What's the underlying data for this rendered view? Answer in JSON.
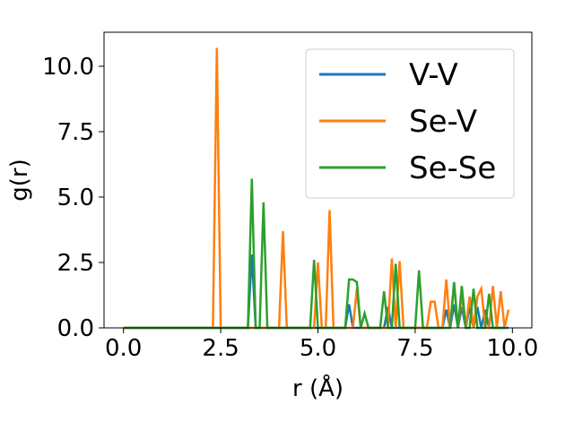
{
  "chart_data": {
    "type": "line",
    "xlabel": "r (Å)",
    "ylabel": "g(r)",
    "xlim": [
      -0.5,
      10.5
    ],
    "ylim": [
      0,
      11.3
    ],
    "xticks": [
      0.0,
      2.5,
      5.0,
      7.5,
      10.0
    ],
    "xtick_labels": [
      "0.0",
      "2.5",
      "5.0",
      "7.5",
      "10.0"
    ],
    "yticks": [
      0.0,
      2.5,
      5.0,
      7.5,
      10.0
    ],
    "ytick_labels": [
      "0.0",
      "2.5",
      "5.0",
      "7.5",
      "10.0"
    ],
    "grid": false,
    "legend_position": "top-right",
    "series": [
      {
        "name": "V-V",
        "color": "#1f77b4",
        "x": [
          0.0,
          3.2,
          3.3,
          3.4,
          5.7,
          5.8,
          5.9,
          6.7,
          6.8,
          6.9,
          8.2,
          8.3,
          8.4,
          8.5,
          8.6,
          8.7,
          8.8,
          8.9,
          9.0,
          9.1,
          9.2,
          9.3,
          9.4,
          9.9
        ],
        "y": [
          0.0,
          0.0,
          2.8,
          0.0,
          0.0,
          0.9,
          0.0,
          0.0,
          0.8,
          0.0,
          0.0,
          0.7,
          0.0,
          0.9,
          0.0,
          0.8,
          0.0,
          0.8,
          0.0,
          0.8,
          0.0,
          0.7,
          0.0,
          0.0
        ]
      },
      {
        "name": "Se-V",
        "color": "#ff7f0e",
        "x": [
          0.0,
          2.3,
          2.4,
          2.5,
          4.0,
          4.1,
          4.2,
          4.9,
          5.0,
          5.1,
          5.2,
          5.3,
          5.4,
          5.9,
          6.0,
          6.1,
          6.8,
          6.9,
          7.0,
          7.1,
          7.2,
          7.7,
          7.8,
          7.9,
          8.0,
          8.1,
          8.2,
          8.3,
          8.4,
          8.5,
          8.6,
          8.7,
          8.8,
          8.9,
          9.0,
          9.1,
          9.2,
          9.3,
          9.4,
          9.5,
          9.6,
          9.7,
          9.8,
          9.9
        ],
        "y": [
          0.0,
          0.0,
          10.7,
          0.0,
          0.0,
          3.7,
          0.0,
          0.0,
          2.5,
          0.0,
          0.0,
          4.5,
          0.0,
          0.0,
          1.5,
          0.0,
          0.0,
          2.65,
          0.0,
          2.55,
          0.0,
          0.0,
          0.0,
          1.0,
          1.0,
          0.0,
          0.0,
          1.85,
          0.0,
          1.7,
          0.0,
          1.3,
          0.0,
          1.2,
          0.0,
          1.2,
          1.5,
          0.0,
          0.0,
          1.6,
          0.0,
          1.4,
          0.0,
          0.7
        ]
      },
      {
        "name": "Se-Se",
        "color": "#2ca02c",
        "x": [
          0.0,
          3.2,
          3.3,
          3.4,
          3.5,
          3.6,
          3.7,
          4.8,
          4.9,
          5.0,
          5.1,
          5.7,
          5.8,
          5.9,
          6.0,
          6.1,
          6.2,
          6.3,
          6.6,
          6.7,
          6.8,
          6.9,
          7.0,
          7.1,
          7.2,
          7.5,
          7.6,
          7.7,
          8.4,
          8.5,
          8.6,
          8.7,
          8.8,
          8.9,
          9.0,
          9.1,
          9.2,
          9.3,
          9.4,
          9.5,
          9.6,
          9.7,
          9.8
        ],
        "y": [
          0.0,
          0.0,
          5.7,
          0.0,
          0.0,
          4.8,
          0.0,
          0.0,
          2.6,
          0.0,
          0.0,
          0.0,
          1.85,
          1.85,
          1.75,
          0.0,
          0.55,
          0.0,
          0.0,
          1.4,
          0.0,
          0.0,
          2.45,
          0.0,
          0.0,
          0.0,
          2.2,
          0.0,
          0.0,
          1.75,
          0.0,
          1.6,
          0.0,
          0.0,
          1.5,
          0.0,
          0.0,
          0.0,
          1.3,
          0.0,
          0.0,
          0.0,
          0.0
        ]
      }
    ]
  }
}
